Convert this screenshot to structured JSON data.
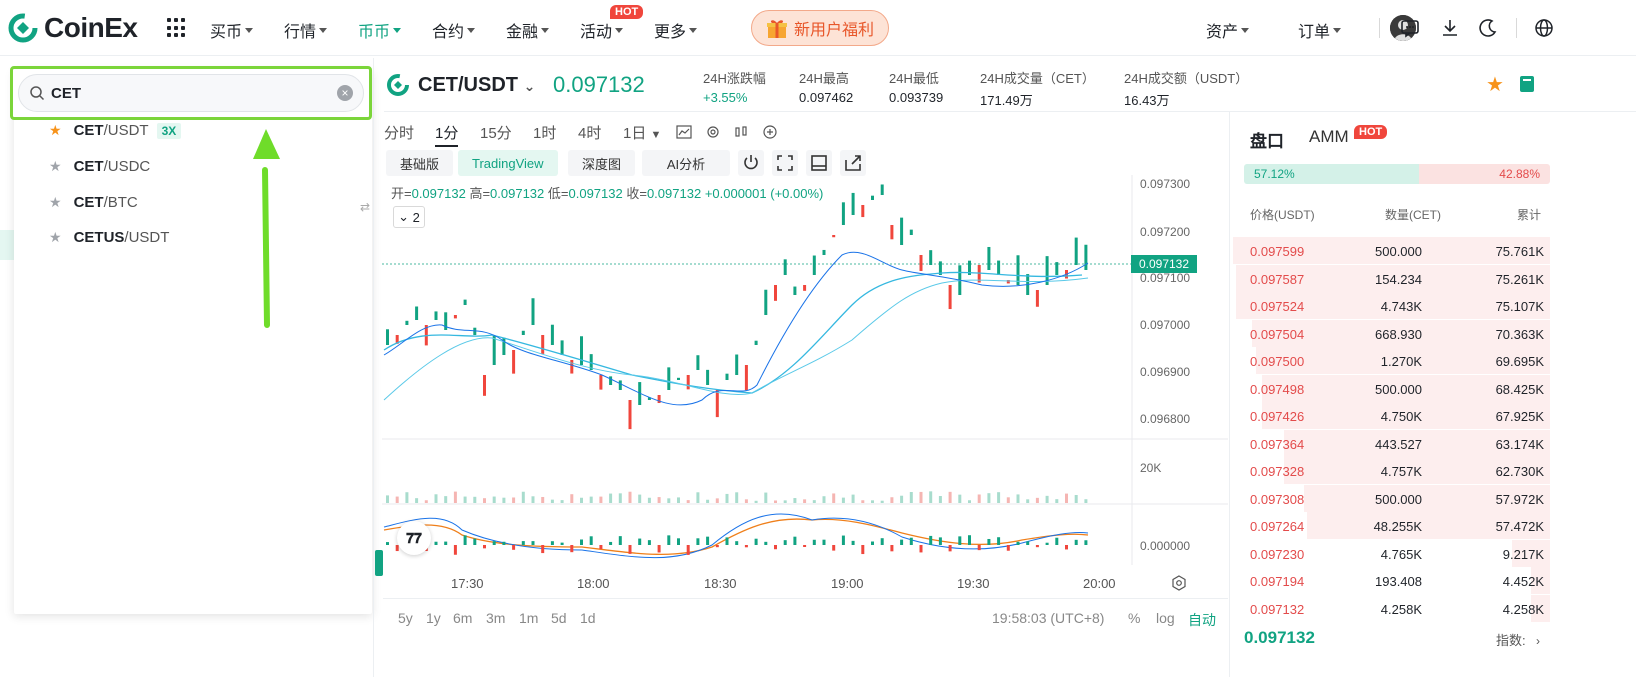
{
  "nav": {
    "logo": "CoinEx",
    "items": [
      {
        "label": "买币",
        "caret": true
      },
      {
        "label": "行情",
        "caret": true
      },
      {
        "label": "币币",
        "caret": true,
        "active": true
      },
      {
        "label": "合约",
        "caret": true
      },
      {
        "label": "金融",
        "caret": true
      },
      {
        "label": "活动",
        "caret": true,
        "badge": "HOT"
      },
      {
        "label": "更多",
        "caret": true
      }
    ],
    "promo": "新用户福利",
    "assets": "资产",
    "orders": "订单",
    "icons": [
      "message-icon",
      "download-icon",
      "moon-icon",
      "globe-icon"
    ],
    "accent": "#11a382"
  },
  "search": {
    "value": "CET",
    "results": [
      {
        "base": "CET",
        "quote": "/USDT",
        "leverage": "3X",
        "favorite": true
      },
      {
        "base": "CET",
        "quote": "/USDC",
        "favorite": false
      },
      {
        "base": "CET",
        "quote": "/BTC",
        "favorite": false
      },
      {
        "base": "CETUS",
        "quote": "/USDT",
        "favorite": false
      }
    ]
  },
  "pair": {
    "name": "CET/USDT",
    "price": "0.097132",
    "stats": [
      {
        "label": "24H涨跌幅",
        "value": "+3.55%"
      },
      {
        "label": "24H最高",
        "value": "0.097462"
      },
      {
        "label": "24H最低",
        "value": "0.093739"
      },
      {
        "label": "24H成交量（CET）",
        "value": "171.49万"
      },
      {
        "label": "24H成交额（USDT）",
        "value": "16.43万"
      }
    ]
  },
  "chart_toolbar": {
    "timeframes": [
      "分时",
      "1分",
      "15分",
      "1时",
      "4时",
      "1日"
    ],
    "active_timeframe": "1分",
    "views": [
      "基础版",
      "TradingView",
      "深度图",
      "AI分析"
    ],
    "active_view": "TradingView"
  },
  "chart_data": {
    "type": "candlestick",
    "ohlc_label": {
      "open_label": "开=",
      "open": "0.097132",
      "high_label": "高=",
      "high": "0.097132",
      "low_label": "低=",
      "low": "0.097132",
      "close_label": "收=",
      "close": "0.097132",
      "change": "+0.000001 (+0.00%)"
    },
    "indicator_count": "2",
    "y_ticks": [
      "0.097300",
      "0.097200",
      "0.097100",
      "0.097000",
      "0.096900",
      "0.096800"
    ],
    "current_price_tag": "0.097132",
    "volume_tick": "20K",
    "macd_tick": "0.000000",
    "x_ticks": [
      "17:30",
      "18:00",
      "18:30",
      "19:00",
      "19:30",
      "20:00"
    ],
    "ranges": [
      "5y",
      "1y",
      "6m",
      "3m",
      "1m",
      "5d",
      "1d"
    ],
    "clock": "19:58:03 (UTC+8)",
    "scale_options": [
      "%",
      "log",
      "自动"
    ],
    "ylim": [
      0.0968,
      0.0973
    ]
  },
  "orderbook": {
    "tab1": "盘口",
    "tab2": "AMM",
    "tab2_badge": "HOT",
    "buy_ratio": "57.12%",
    "sell_ratio": "42.88%",
    "buy_ratio_fraction": 0.5712,
    "headers": [
      "价格(USDT)",
      "数量(CET)",
      "累计"
    ],
    "asks": [
      {
        "price": "0.097599",
        "qty": "500.000",
        "total": "75.761K",
        "depth": 0.99
      },
      {
        "price": "0.097587",
        "qty": "154.234",
        "total": "75.261K",
        "depth": 0.98
      },
      {
        "price": "0.097524",
        "qty": "4.743K",
        "total": "75.107K",
        "depth": 0.98
      },
      {
        "price": "0.097504",
        "qty": "668.930",
        "total": "70.363K",
        "depth": 0.93
      },
      {
        "price": "0.097500",
        "qty": "1.270K",
        "total": "69.695K",
        "depth": 0.92
      },
      {
        "price": "0.097498",
        "qty": "500.000",
        "total": "68.425K",
        "depth": 0.9
      },
      {
        "price": "0.097426",
        "qty": "4.750K",
        "total": "67.925K",
        "depth": 0.9
      },
      {
        "price": "0.097364",
        "qty": "443.527",
        "total": "63.174K",
        "depth": 0.83
      },
      {
        "price": "0.097328",
        "qty": "4.757K",
        "total": "62.730K",
        "depth": 0.83
      },
      {
        "price": "0.097308",
        "qty": "500.000",
        "total": "57.972K",
        "depth": 0.77
      },
      {
        "price": "0.097264",
        "qty": "48.255K",
        "total": "57.472K",
        "depth": 0.76
      },
      {
        "price": "0.097230",
        "qty": "4.765K",
        "total": "9.217K",
        "depth": 0.12
      },
      {
        "price": "0.097194",
        "qty": "193.408",
        "total": "4.452K",
        "depth": 0.06
      },
      {
        "price": "0.097132",
        "qty": "4.258K",
        "total": "4.258K",
        "depth": 0.06
      }
    ],
    "last_price": "0.097132",
    "index_label": "指数:"
  }
}
